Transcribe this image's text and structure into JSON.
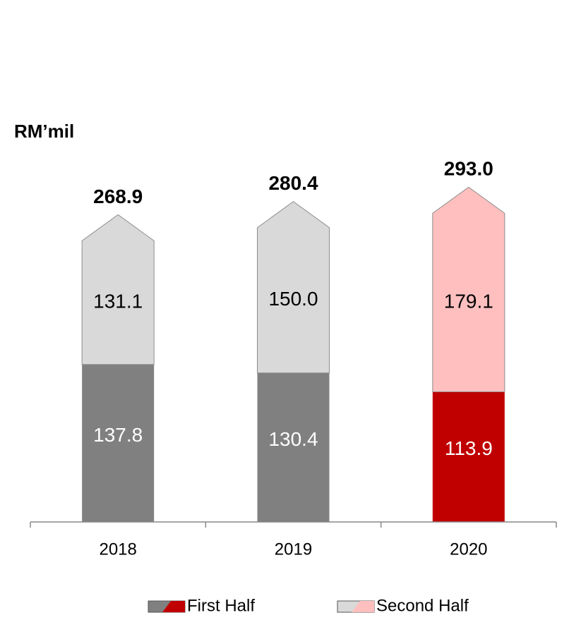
{
  "chart_data": {
    "type": "stacked_arrow_bar",
    "unit_label": "RM’mil",
    "categories": [
      "2018",
      "2019",
      "2020"
    ],
    "series": [
      {
        "name": "First Half",
        "colors": [
          "#808080",
          "#808080",
          "#c00000"
        ],
        "values": [
          137.8,
          130.4,
          113.9
        ],
        "value_labels": [
          "137.8",
          "130.4",
          "113.9"
        ]
      },
      {
        "name": "Second Half",
        "colors": [
          "#d9d9d9",
          "#d9d9d9",
          "#ffbfbf"
        ],
        "values": [
          131.1,
          150.0,
          179.1
        ],
        "value_labels": [
          "131.1",
          "150.0",
          "179.1"
        ]
      }
    ],
    "totals": {
      "values": [
        268.9,
        280.4,
        293.0
      ],
      "value_labels": [
        "268.9",
        "280.4",
        "293.0"
      ]
    },
    "ylim": [
      0,
      400
    ]
  }
}
